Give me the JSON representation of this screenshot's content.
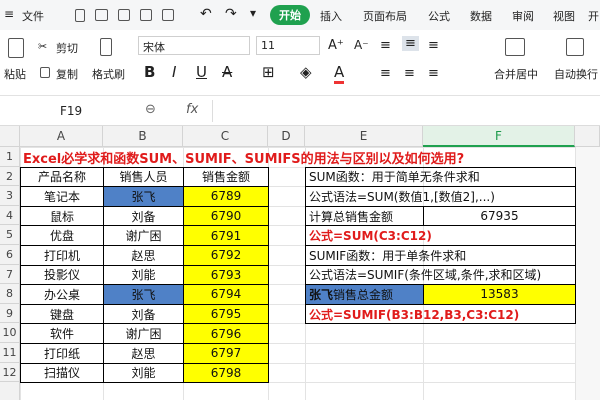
{
  "menu": {
    "file": "文件",
    "tabs": [
      "开始",
      "插入",
      "页面布局",
      "公式",
      "数据",
      "审阅",
      "视图",
      "开"
    ]
  },
  "ribbon": {
    "paste": "粘贴",
    "cut": "剪切",
    "copy": "复制",
    "format_painter": "格式刷",
    "font": "宋体",
    "font_size": "11",
    "merge": "合并居中",
    "wrap": "自动换行"
  },
  "name_box": "F19",
  "formula_label": "fx",
  "columns": [
    "A",
    "B",
    "C",
    "D",
    "E",
    "F"
  ],
  "row_numbers": [
    1,
    2,
    3,
    4,
    5,
    6,
    7,
    8,
    9,
    10,
    11,
    12
  ],
  "title": "Excel必学求和函数SUM、SUMIF、SUMIFS的用法与区别以及如何选用?",
  "table": {
    "header": [
      "产品名称",
      "销售人员",
      "销售金额"
    ],
    "rows": [
      [
        "笔记本",
        "张飞",
        6789
      ],
      [
        "鼠标",
        "刘备",
        6790
      ],
      [
        "优盘",
        "谢广困",
        6791
      ],
      [
        "打印机",
        "赵思",
        6792
      ],
      [
        "投影仪",
        "刘能",
        6793
      ],
      [
        "办公桌",
        "张飞",
        6794
      ],
      [
        "键盘",
        "刘备",
        6795
      ],
      [
        "软件",
        "谢广困",
        6796
      ],
      [
        "打印纸",
        "赵思",
        6797
      ],
      [
        "扫描仪",
        "刘能",
        6798
      ]
    ]
  },
  "side": {
    "E2": "SUM函数：用于简单无条件求和",
    "E3": "公式语法=SUM(数值1,[数值2],...)",
    "E4": "计算总销售金额",
    "F4": 67935,
    "E5": "公式=SUM(C3:C12)",
    "E6": "SUMIF函数：用于单条件求和",
    "E7": "公式语法=SUMIF(条件区域,条件,求和区域)",
    "E8_name": "张飞",
    "E8_text": "销售总金额",
    "F8": 13583,
    "E9": "公式=SUMIF(B3:B12,B3,C3:C12)"
  }
}
